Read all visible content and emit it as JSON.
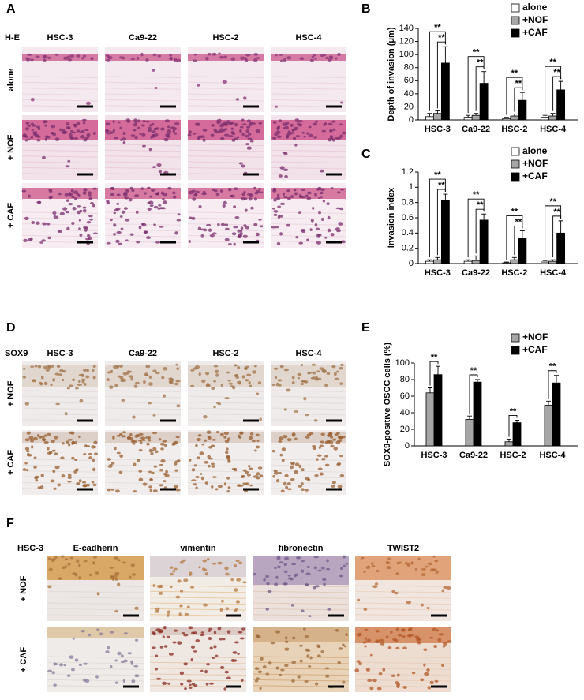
{
  "panels": {
    "A": {
      "letter": "A",
      "stain": "H-E",
      "columns": [
        "HSC-3",
        "Ca9-22",
        "HSC-2",
        "HSC-4"
      ],
      "rows": [
        "alone",
        "+ NOF",
        "+ CAF"
      ]
    },
    "D": {
      "letter": "D",
      "stain": "SOX9",
      "columns": [
        "HSC-3",
        "Ca9-22",
        "HSC-2",
        "HSC-4"
      ],
      "rows": [
        "+ NOF",
        "+ CAF"
      ]
    },
    "F": {
      "letter": "F",
      "cell": "HSC-3",
      "columns": [
        "E-cadherin",
        "vimentin",
        "fibronectin",
        "TWIST2"
      ],
      "rows": [
        "+ NOF",
        "+ CAF"
      ]
    }
  },
  "chart_data": [
    {
      "type": "bar",
      "panel": "B",
      "ylabel": "Depth of invasion (μm)",
      "categories": [
        "HSC-3",
        "Ca9-22",
        "HSC-2",
        "HSC-4"
      ],
      "series": [
        {
          "name": "alone",
          "color": "#ffffff",
          "values": [
            5,
            4,
            2,
            4
          ],
          "errors": [
            5,
            3,
            2,
            3
          ]
        },
        {
          "name": "+NOF",
          "color": "#a6a6a6",
          "values": [
            10,
            7,
            6,
            6
          ],
          "errors": [
            4,
            3,
            3,
            4
          ]
        },
        {
          "name": "+CAF",
          "color": "#000000",
          "values": [
            87,
            56,
            30,
            46
          ],
          "errors": [
            25,
            18,
            12,
            13
          ]
        }
      ],
      "ylim": [
        0,
        140
      ],
      "yticks": [
        0,
        20,
        40,
        60,
        80,
        100,
        120,
        140
      ],
      "legend": "top-right",
      "annotations": [
        [
          "**",
          "**"
        ],
        [
          "**",
          "**"
        ],
        [
          "**",
          "**"
        ],
        [
          "**",
          "**"
        ]
      ]
    },
    {
      "type": "bar",
      "panel": "C",
      "ylabel": "Invasion index",
      "categories": [
        "HSC-3",
        "Ca9-22",
        "HSC-2",
        "HSC-4"
      ],
      "series": [
        {
          "name": "alone",
          "color": "#ffffff",
          "values": [
            0.03,
            0.03,
            0.01,
            0.02
          ],
          "errors": [
            0.02,
            0.02,
            0.01,
            0.02
          ]
        },
        {
          "name": "+NOF",
          "color": "#a6a6a6",
          "values": [
            0.05,
            0.04,
            0.05,
            0.03
          ],
          "errors": [
            0.03,
            0.06,
            0.03,
            0.02
          ]
        },
        {
          "name": "+CAF",
          "color": "#000000",
          "values": [
            0.83,
            0.57,
            0.33,
            0.4
          ],
          "errors": [
            0.08,
            0.08,
            0.1,
            0.16
          ]
        }
      ],
      "ylim": [
        0,
        1.2
      ],
      "yticks": [
        0,
        0.2,
        0.4,
        0.6,
        0.8,
        1,
        1.2
      ],
      "legend": "top-right",
      "annotations": [
        [
          "**",
          "**"
        ],
        [
          "**",
          "**"
        ],
        [
          "**",
          "**"
        ],
        [
          "**",
          "**"
        ]
      ]
    },
    {
      "type": "bar",
      "panel": "E",
      "ylabel": "SOX9-positive OSCC cells (%)",
      "categories": [
        "HSC-3",
        "Ca9-22",
        "HSC-2",
        "HSC-4"
      ],
      "series": [
        {
          "name": "+NOF",
          "color": "#a6a6a6",
          "values": [
            64,
            32,
            5,
            49
          ],
          "errors": [
            6,
            4,
            3,
            5
          ]
        },
        {
          "name": "+CAF",
          "color": "#000000",
          "values": [
            86,
            77,
            28,
            76
          ],
          "errors": [
            10,
            3,
            3,
            9
          ]
        }
      ],
      "ylim": [
        0,
        100
      ],
      "yticks": [
        0,
        20,
        40,
        60,
        80,
        100
      ],
      "legend": "top-right",
      "annotations": [
        [
          "**"
        ],
        [
          "**"
        ],
        [
          "**"
        ],
        [
          "**"
        ]
      ]
    }
  ]
}
